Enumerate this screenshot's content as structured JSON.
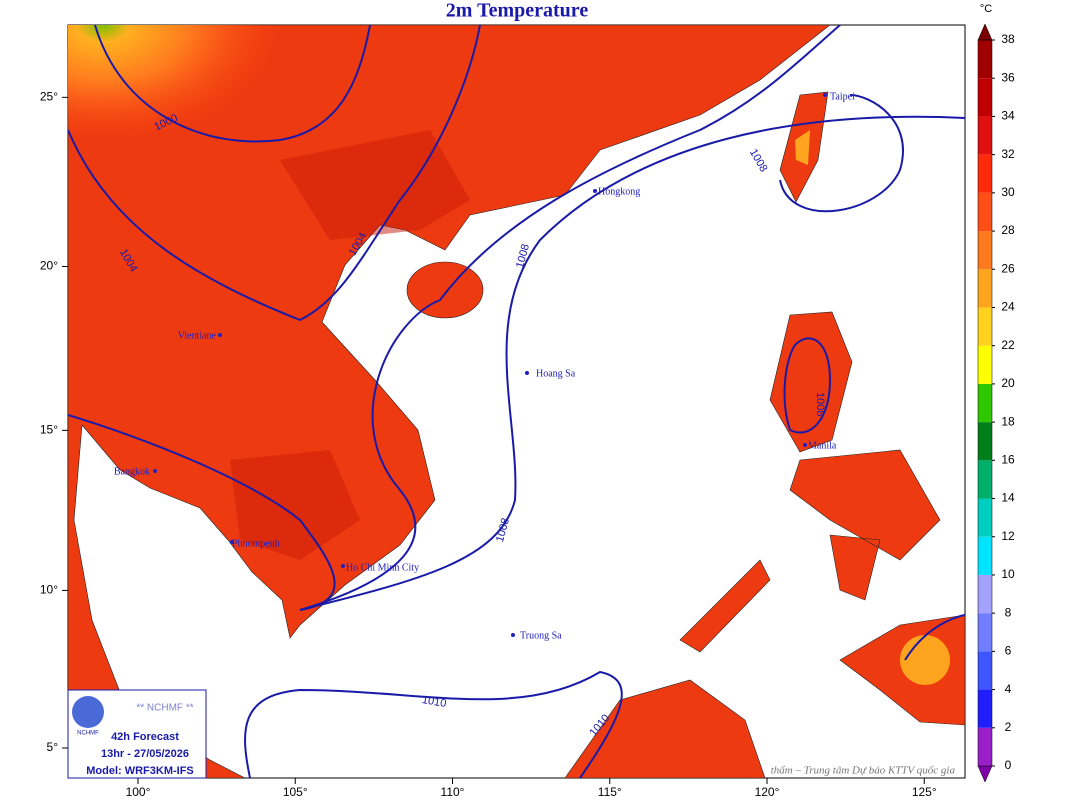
{
  "title": "2m Temperature",
  "unit": "°C",
  "colorbar": {
    "ticks": [
      0,
      2,
      4,
      6,
      8,
      10,
      12,
      14,
      16,
      18,
      20,
      22,
      24,
      26,
      28,
      30,
      32,
      34,
      36,
      38
    ],
    "colors": [
      "#7d00a8",
      "#9a1fc8",
      "#1e1eff",
      "#3f55ff",
      "#6f7fff",
      "#a3a3ff",
      "#00e4ff",
      "#00cfc0",
      "#00b06a",
      "#00801a",
      "#2fc800",
      "#ffff00",
      "#ffd21e",
      "#ffa41e",
      "#ff7a1e",
      "#ff4e16",
      "#ff2a0a",
      "#e01010",
      "#c00000",
      "#a00000",
      "#7a0000"
    ]
  },
  "lon_ticks": [
    {
      "value": 100,
      "label": "100°"
    },
    {
      "value": 105,
      "label": "105°"
    },
    {
      "value": 110,
      "label": "110°"
    },
    {
      "value": 115,
      "label": "115°"
    },
    {
      "value": 120,
      "label": "120°"
    },
    {
      "value": 125,
      "label": "125°"
    }
  ],
  "lat_ticks": [
    {
      "value": 5,
      "label": "5°"
    },
    {
      "value": 10,
      "label": "10°"
    },
    {
      "value": 15,
      "label": "15°"
    },
    {
      "value": 20,
      "label": "20°"
    },
    {
      "value": 25,
      "label": "25°"
    }
  ],
  "contour_labels": [
    "1000",
    "1004",
    "1004",
    "1008",
    "1008",
    "1008",
    "1008",
    "1010",
    "1010"
  ],
  "cities": [
    "Taipei",
    "Hongkong",
    "Hoang Sa",
    "Manila",
    "Bangkok",
    "Phnompenh",
    "Ho Chi Minh City",
    "Truong Sa",
    "Vientiane"
  ],
  "info": {
    "agency": "** NCHMF **",
    "logo": "NCHMF",
    "forecast": "42h Forecast",
    "time": "13hr - 27/05/2026",
    "model": "Model: WRF3KM-IFS"
  },
  "watermark": "thẩm – Trung tâm Dự báo KTTV quốc gia"
}
